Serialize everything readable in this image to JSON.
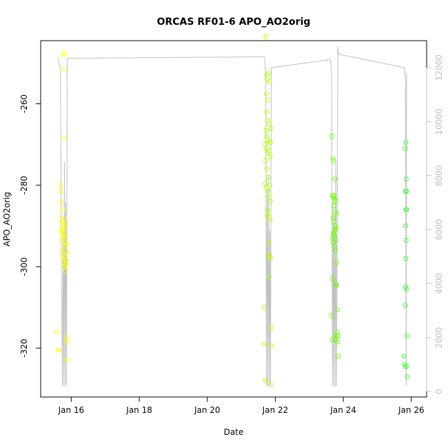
{
  "chart_data": {
    "type": "scatter",
    "title": "ORCAS RF01-6 APO_AO2orig",
    "xlabel": "Date",
    "ylabel": "APO_AO2orig",
    "x_ticks": [
      "Jan 16",
      "Jan 18",
      "Jan 20",
      "Jan 22",
      "Jan 24",
      "Jan 26"
    ],
    "x_tick_values": [
      16,
      18,
      20,
      22,
      24,
      26
    ],
    "xlim": [
      15.1,
      26.45
    ],
    "ylim": [
      -332.0,
      -244.5
    ],
    "y_ticks": [
      -320,
      -300,
      -280,
      -260
    ],
    "y2_ticks": [
      0,
      2000,
      4000,
      6000,
      8000,
      10000,
      12000
    ],
    "y2lim": [
      -200,
      13000
    ],
    "colors": {
      "flight1": "#ffff00",
      "flight2": "#b2ff00",
      "flight3": "#66ff00",
      "flight4": "#33ff33",
      "altitude": "#bfbfbf",
      "right_axis": "#bdbdbd"
    },
    "series": [
      {
        "color": "#ffff00",
        "points": [
          [
            15.76,
            -248.0
          ],
          [
            15.78,
            -247.5
          ],
          [
            15.8,
            -251.5
          ],
          [
            15.8,
            -268.5
          ],
          [
            15.57,
            -316.0
          ],
          [
            15.61,
            -320.5
          ],
          [
            15.63,
            -320.5
          ],
          [
            15.68,
            -280.0
          ],
          [
            15.7,
            -281.5
          ],
          [
            15.72,
            -284.0
          ],
          [
            15.74,
            -286.0
          ],
          [
            15.71,
            -288.0
          ],
          [
            15.73,
            -289.0
          ],
          [
            15.76,
            -289.5
          ],
          [
            15.78,
            -290.0
          ],
          [
            15.8,
            -290.5
          ],
          [
            15.82,
            -288.5
          ],
          [
            15.75,
            -291.0
          ],
          [
            15.77,
            -292.5
          ],
          [
            15.79,
            -293.0
          ],
          [
            15.81,
            -294.0
          ],
          [
            15.83,
            -295.0
          ],
          [
            15.72,
            -296.0
          ],
          [
            15.74,
            -297.0
          ],
          [
            15.76,
            -298.0
          ],
          [
            15.78,
            -299.0
          ],
          [
            15.8,
            -300.0
          ],
          [
            15.82,
            -301.0
          ],
          [
            15.84,
            -299.5
          ],
          [
            15.86,
            -298.5
          ],
          [
            15.87,
            -296.5
          ],
          [
            15.85,
            -294.5
          ],
          [
            15.83,
            -292.0
          ],
          [
            15.69,
            -291.5
          ],
          [
            15.7,
            -293.5
          ],
          [
            15.86,
            -317.5
          ],
          [
            15.88,
            -318.5
          ],
          [
            15.86,
            -323.0
          ],
          [
            15.71,
            -291.0
          ],
          [
            15.81,
            -297.5
          ]
        ]
      },
      {
        "color": "#b2ff00",
        "points": [
          [
            21.72,
            -243.5
          ],
          [
            21.74,
            -253.0
          ],
          [
            21.76,
            -254.0
          ],
          [
            21.8,
            -252.5
          ],
          [
            21.82,
            -254.5
          ],
          [
            21.74,
            -257.5
          ],
          [
            21.77,
            -259.0
          ],
          [
            21.75,
            -262.0
          ],
          [
            21.78,
            -264.0
          ],
          [
            21.82,
            -265.0
          ],
          [
            21.86,
            -266.0
          ],
          [
            21.73,
            -266.5
          ],
          [
            21.75,
            -268.0
          ],
          [
            21.78,
            -269.0
          ],
          [
            21.82,
            -269.5
          ],
          [
            21.86,
            -269.5
          ],
          [
            21.7,
            -270.0
          ],
          [
            21.74,
            -271.0
          ],
          [
            21.77,
            -272.0
          ],
          [
            21.81,
            -271.5
          ],
          [
            21.85,
            -273.0
          ],
          [
            21.72,
            -274.0
          ],
          [
            21.76,
            -276.0
          ],
          [
            21.8,
            -278.0
          ],
          [
            21.84,
            -280.0
          ],
          [
            21.7,
            -279.5
          ],
          [
            21.74,
            -280.5
          ],
          [
            21.78,
            -281.5
          ],
          [
            21.82,
            -283.0
          ],
          [
            21.86,
            -284.0
          ],
          [
            21.77,
            -286.0
          ],
          [
            21.81,
            -287.0
          ],
          [
            21.85,
            -288.5
          ],
          [
            21.76,
            -287.5
          ],
          [
            21.82,
            -294.0
          ],
          [
            21.84,
            -297.0
          ],
          [
            21.86,
            -298.0
          ],
          [
            21.82,
            -302.5
          ],
          [
            21.67,
            -310.0
          ],
          [
            21.88,
            -315.0
          ],
          [
            21.66,
            -319.0
          ],
          [
            21.89,
            -319.5
          ],
          [
            21.71,
            -328.0
          ],
          [
            21.87,
            -329.0
          ],
          [
            21.83,
            -297.5
          ]
        ]
      },
      {
        "color": "#66ff00",
        "points": [
          [
            23.67,
            -268.0
          ],
          [
            23.7,
            -273.5
          ],
          [
            23.72,
            -274.0
          ],
          [
            23.75,
            -278.5
          ],
          [
            23.68,
            -282.5
          ],
          [
            23.71,
            -283.0
          ],
          [
            23.74,
            -283.5
          ],
          [
            23.77,
            -284.0
          ],
          [
            23.72,
            -285.0
          ],
          [
            23.76,
            -286.5
          ],
          [
            23.8,
            -287.0
          ],
          [
            23.7,
            -288.0
          ],
          [
            23.73,
            -289.0
          ],
          [
            23.76,
            -290.0
          ],
          [
            23.79,
            -290.5
          ],
          [
            23.72,
            -291.5
          ],
          [
            23.75,
            -292.5
          ],
          [
            23.78,
            -293.5
          ],
          [
            23.69,
            -293.0
          ],
          [
            23.71,
            -294.0
          ],
          [
            23.74,
            -295.0
          ],
          [
            23.77,
            -296.0
          ],
          [
            23.8,
            -299.0
          ],
          [
            23.68,
            -303.0
          ],
          [
            23.78,
            -304.5
          ],
          [
            23.8,
            -304.5
          ],
          [
            23.83,
            -310.5
          ],
          [
            23.66,
            -312.0
          ],
          [
            23.82,
            -316.0
          ],
          [
            23.79,
            -317.0
          ],
          [
            23.84,
            -317.0
          ],
          [
            23.78,
            -318.0
          ],
          [
            23.83,
            -318.5
          ],
          [
            23.68,
            -318.0
          ],
          [
            23.85,
            -322.0
          ],
          [
            23.73,
            -282.5
          ],
          [
            23.75,
            -291.0
          ],
          [
            23.71,
            -292.0
          ]
        ]
      },
      {
        "color": "#33ff33",
        "points": [
          [
            25.84,
            -269.5
          ],
          [
            25.82,
            -271.0
          ],
          [
            25.85,
            -278.5
          ],
          [
            25.83,
            -281.5
          ],
          [
            25.86,
            -281.5
          ],
          [
            25.84,
            -286.0
          ],
          [
            25.86,
            -286.0
          ],
          [
            25.83,
            -290.0
          ],
          [
            25.85,
            -293.5
          ],
          [
            25.84,
            -298.0
          ],
          [
            25.83,
            -305.0
          ],
          [
            25.86,
            -305.5
          ],
          [
            25.82,
            -309.5
          ],
          [
            25.87,
            -317.0
          ],
          [
            25.78,
            -322.0
          ],
          [
            25.8,
            -324.0
          ],
          [
            25.82,
            -324.5
          ],
          [
            25.86,
            -324.5
          ],
          [
            25.88,
            -327.0
          ]
        ]
      }
    ],
    "altitude_series": {
      "name": "",
      "points": [
        [
          15.6,
          12400
        ],
        [
          15.68,
          12000
        ],
        [
          15.72,
          3000
        ],
        [
          15.74,
          200
        ],
        [
          15.76,
          6000
        ],
        [
          15.78,
          200
        ],
        [
          15.8,
          8500
        ],
        [
          15.82,
          200
        ],
        [
          15.84,
          7000
        ],
        [
          15.86,
          200
        ],
        [
          15.88,
          12350
        ],
        [
          21.68,
          12400
        ],
        [
          21.72,
          11800
        ],
        [
          21.74,
          200
        ],
        [
          21.76,
          7500
        ],
        [
          21.78,
          200
        ],
        [
          21.8,
          8000
        ],
        [
          21.82,
          200
        ],
        [
          21.84,
          6000
        ],
        [
          21.86,
          200
        ],
        [
          21.88,
          12000
        ],
        [
          23.62,
          12300
        ],
        [
          23.66,
          11800
        ],
        [
          23.68,
          200
        ],
        [
          23.7,
          7000
        ],
        [
          23.72,
          200
        ],
        [
          23.74,
          6500
        ],
        [
          23.76,
          200
        ],
        [
          23.78,
          8500
        ],
        [
          23.8,
          200
        ],
        [
          23.84,
          12800
        ],
        [
          23.86,
          12500
        ],
        [
          25.8,
          12000
        ],
        [
          25.83,
          11500
        ],
        [
          25.85,
          200
        ],
        [
          25.86,
          11800
        ]
      ]
    }
  }
}
